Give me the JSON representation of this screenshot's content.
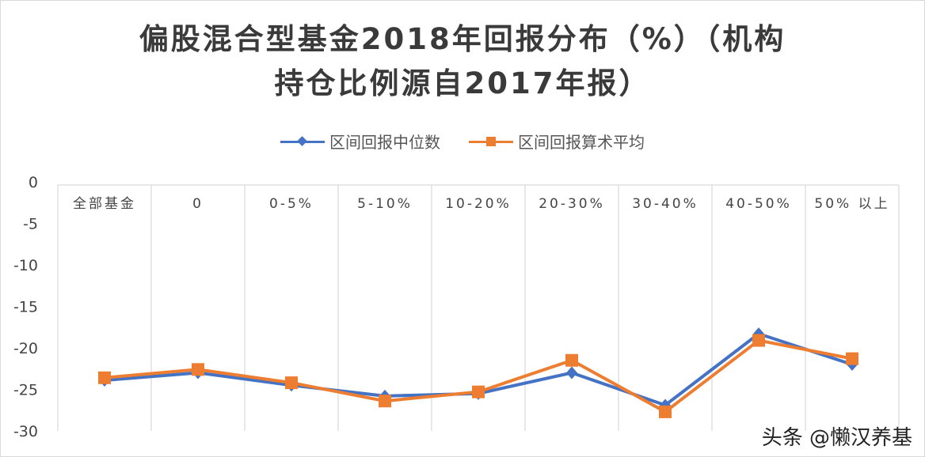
{
  "chart_data": {
    "type": "line",
    "title": "偏股混合型基金2018年回报分布（%）（机构持仓比例源自2017年报）",
    "title_lines": [
      "偏股混合型基金2018年回报分布（%）（机构",
      "持仓比例源自2017年报）"
    ],
    "xlabel": "",
    "ylabel": "",
    "categories": [
      "全部基金",
      "0",
      "0-5%",
      "5-10%",
      "10-20%",
      "20-30%",
      "30-40%",
      "40-50%",
      "50% 以上"
    ],
    "series": [
      {
        "name": "区间回报中位数",
        "color": "#4472C4",
        "marker": "diamond",
        "values": [
          -23.9,
          -23.0,
          -24.5,
          -25.8,
          -25.5,
          -23.0,
          -26.9,
          -18.3,
          -22.0
        ]
      },
      {
        "name": "区间回报算术平均",
        "color": "#ED7D31",
        "marker": "square",
        "values": [
          -23.6,
          -22.6,
          -24.2,
          -26.4,
          -25.3,
          -21.5,
          -27.7,
          -19.1,
          -21.3
        ]
      }
    ],
    "yticks": [
      0,
      -5,
      -10,
      -15,
      -20,
      -25,
      -30
    ],
    "ylim": [
      -30,
      0
    ],
    "x_axis_position": "top",
    "grid": {
      "vertical": true,
      "horizontal": false
    },
    "legend_position": "top"
  },
  "watermark": "头条 @懒汉养基"
}
